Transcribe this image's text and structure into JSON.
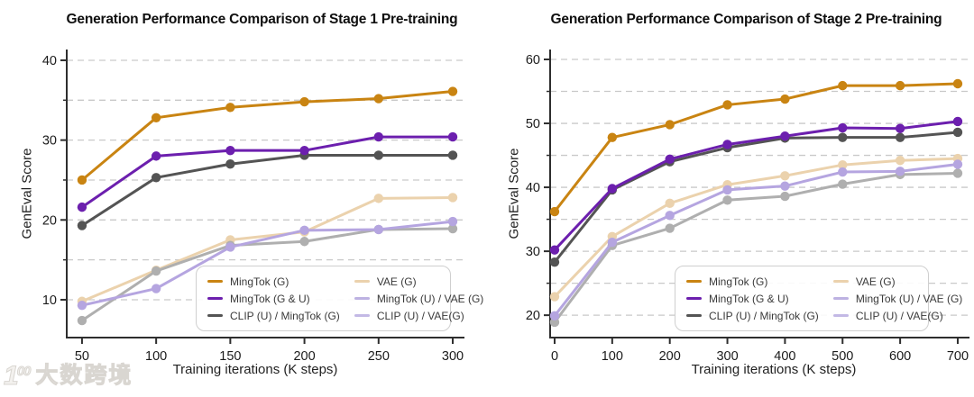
{
  "watermark": {
    "logo_one": "1",
    "logo_sup": "00",
    "label": "大数跨境"
  },
  "chart_data": [
    {
      "type": "line",
      "title": "Generation Performance Comparison of Stage 1 Pre-training",
      "xlabel": "Training iterations (K steps)",
      "ylabel": "GenEval Score",
      "x": [
        50,
        100,
        150,
        200,
        250,
        300
      ],
      "xticks": [
        50,
        100,
        150,
        200,
        250,
        300
      ],
      "yticks": [
        10,
        20,
        30,
        40
      ],
      "grid_step": 5,
      "grid": true,
      "xlim": [
        39.7,
        307.9
      ],
      "ylim": [
        5.26,
        41.35
      ],
      "legend_position": "lower right",
      "series": [
        {
          "name": "MingTok (G)",
          "color": "#C98412",
          "legend_color": "#C98412",
          "values": [
            25.0,
            32.8,
            34.1,
            34.8,
            35.2,
            36.1
          ]
        },
        {
          "name": "MingTok (G & U)",
          "color": "#6C1FAE",
          "legend_color": "#6C1FAE",
          "values": [
            21.6,
            28.0,
            28.7,
            28.7,
            30.4,
            30.4
          ]
        },
        {
          "name": "CLIP (U) / MingTok (G)",
          "color": "#545454",
          "legend_color": "#545454",
          "values": [
            19.3,
            25.3,
            27.0,
            28.1,
            28.1,
            28.1
          ]
        },
        {
          "name": "VAE (G)",
          "color": "#EBD2AD",
          "legend_color": "#EBD2AD",
          "values": [
            9.8,
            13.7,
            17.5,
            18.5,
            22.7,
            22.8
          ]
        },
        {
          "name": "MingTok (U) / VAE (G)",
          "color": "#B5A5E0",
          "legend_color": "#BDB2E2",
          "values": [
            9.3,
            11.4,
            16.6,
            18.7,
            18.8,
            19.8
          ]
        },
        {
          "name": "CLIP (U) / VAE(G)",
          "color": "#AFAFAF",
          "legend_color": "#C3B9E5",
          "values": [
            7.4,
            13.6,
            16.8,
            17.3,
            18.8,
            18.9
          ]
        }
      ]
    },
    {
      "type": "line",
      "title": "Generation Performance Comparison of Stage 2 Pre-training",
      "xlabel": "Training iterations (K steps)",
      "ylabel": "GenEval Score",
      "x": [
        0,
        100,
        200,
        300,
        400,
        500,
        600,
        700
      ],
      "xticks": [
        0,
        100,
        200,
        300,
        400,
        500,
        600,
        700
      ],
      "yticks": [
        20,
        30,
        40,
        50,
        60
      ],
      "grid_step": 5,
      "grid": true,
      "xlim": [
        -7.8,
        720.4
      ],
      "ylim": [
        16.5,
        61.55
      ],
      "legend_position": "lower right",
      "series": [
        {
          "name": "MingTok (G)",
          "color": "#C98412",
          "legend_color": "#C98412",
          "values": [
            36.2,
            47.8,
            49.8,
            52.9,
            53.8,
            55.9,
            55.9,
            56.2
          ]
        },
        {
          "name": "MingTok (G & U)",
          "color": "#6C1FAE",
          "legend_color": "#6C1FAE",
          "values": [
            30.2,
            39.8,
            44.4,
            46.7,
            48.0,
            49.3,
            49.2,
            50.3
          ]
        },
        {
          "name": "CLIP (U) / MingTok (G)",
          "color": "#545454",
          "legend_color": "#545454",
          "values": [
            28.3,
            39.6,
            44.0,
            46.2,
            47.7,
            47.8,
            47.8,
            48.6
          ]
        },
        {
          "name": "VAE (G)",
          "color": "#EBD2AD",
          "legend_color": "#EBD2AD",
          "values": [
            22.9,
            32.3,
            37.5,
            40.4,
            41.8,
            43.5,
            44.2,
            44.5
          ]
        },
        {
          "name": "MingTok (U) / VAE (G)",
          "color": "#B5A5E0",
          "legend_color": "#BDB2E2",
          "values": [
            19.9,
            31.4,
            35.6,
            39.6,
            40.2,
            42.4,
            42.5,
            43.6
          ]
        },
        {
          "name": "CLIP (U) / VAE(G)",
          "color": "#AFAFAF",
          "legend_color": "#C3B9E5",
          "values": [
            18.9,
            30.9,
            33.6,
            38.0,
            38.6,
            40.5,
            42.0,
            42.2
          ]
        }
      ]
    }
  ]
}
